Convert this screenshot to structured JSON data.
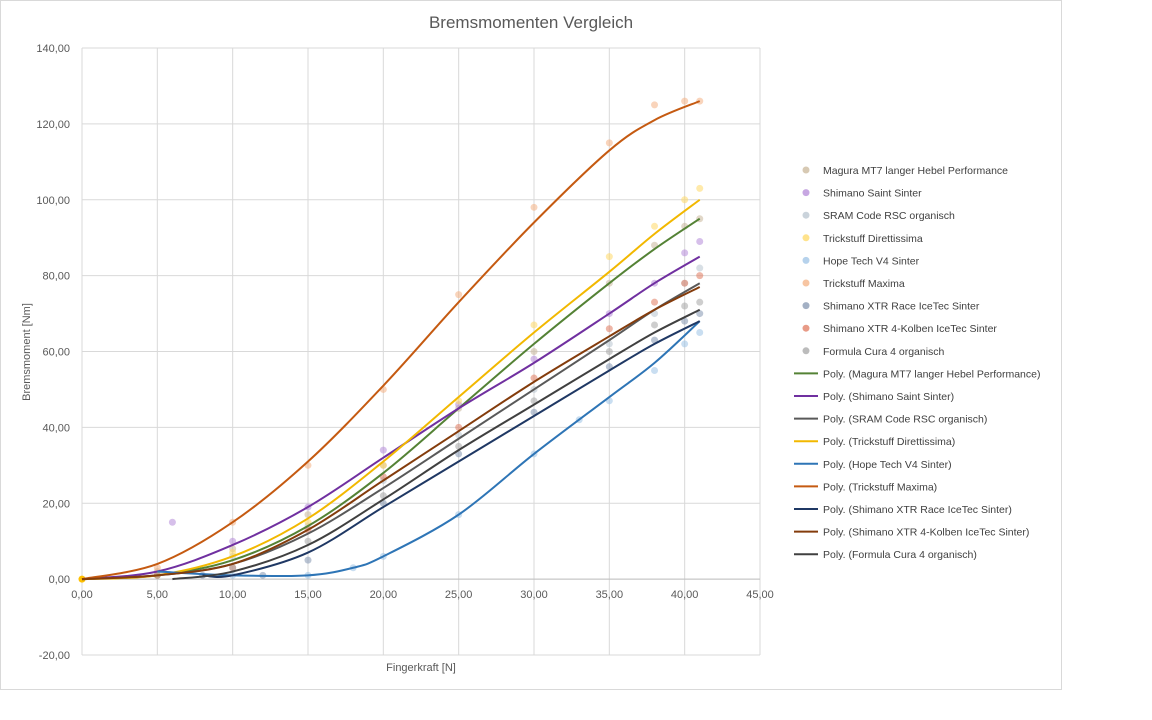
{
  "chart_data": {
    "type": "scatter",
    "title": "Bremsmomenten Vergleich",
    "xlabel": "Fingerkraft [N]",
    "ylabel": "Bremsmoment [Nm]",
    "xlim": [
      0,
      45
    ],
    "ylim": [
      -20,
      140
    ],
    "x_ticks": [
      "0,00",
      "5,00",
      "10,00",
      "15,00",
      "20,00",
      "25,00",
      "30,00",
      "35,00",
      "40,00",
      "45,00"
    ],
    "y_ticks": [
      "-20,00",
      "0,00",
      "20,00",
      "40,00",
      "60,00",
      "80,00",
      "100,00",
      "120,00",
      "140,00"
    ],
    "grid": true,
    "legend_position": "right",
    "series": [
      {
        "name": "Magura MT7 langer Hebel Performance",
        "color": "#c9b79a",
        "points": [
          [
            5,
            2
          ],
          [
            10,
            8
          ],
          [
            15,
            17
          ],
          [
            20,
            30
          ],
          [
            25,
            45
          ],
          [
            30,
            60
          ],
          [
            35,
            78
          ],
          [
            38,
            88
          ],
          [
            40,
            93
          ],
          [
            41,
            95
          ]
        ]
      },
      {
        "name": "Shimano Saint Sinter",
        "color": "#b48ad8",
        "points": [
          [
            6,
            15
          ],
          [
            10,
            10
          ],
          [
            15,
            19
          ],
          [
            20,
            34
          ],
          [
            25,
            46
          ],
          [
            30,
            58
          ],
          [
            35,
            70
          ],
          [
            38,
            78
          ],
          [
            40,
            86
          ],
          [
            41,
            89
          ]
        ]
      },
      {
        "name": "SRAM Code RSC organisch",
        "color": "#b8c4cf",
        "points": [
          [
            5,
            1
          ],
          [
            10,
            6
          ],
          [
            15,
            14
          ],
          [
            20,
            26
          ],
          [
            25,
            38
          ],
          [
            30,
            50
          ],
          [
            35,
            62
          ],
          [
            38,
            70
          ],
          [
            40,
            78
          ],
          [
            41,
            82
          ]
        ]
      },
      {
        "name": "Trickstuff Direttissima",
        "color": "#ffd966",
        "points": [
          [
            5,
            1
          ],
          [
            10,
            7
          ],
          [
            15,
            15
          ],
          [
            20,
            30
          ],
          [
            25,
            47
          ],
          [
            30,
            67
          ],
          [
            35,
            85
          ],
          [
            38,
            93
          ],
          [
            40,
            100
          ],
          [
            41,
            103
          ]
        ]
      },
      {
        "name": "Hope Tech V4 Sinter",
        "color": "#9dc3e6",
        "points": [
          [
            10,
            1
          ],
          [
            15,
            1
          ],
          [
            18,
            3
          ],
          [
            20,
            6
          ],
          [
            25,
            17
          ],
          [
            30,
            33
          ],
          [
            33,
            42
          ],
          [
            35,
            47
          ],
          [
            38,
            55
          ],
          [
            40,
            62
          ],
          [
            41,
            65
          ]
        ]
      },
      {
        "name": "Trickstuff Maxima",
        "color": "#f4b183",
        "points": [
          [
            5,
            3
          ],
          [
            10,
            15
          ],
          [
            15,
            30
          ],
          [
            20,
            50
          ],
          [
            25,
            75
          ],
          [
            30,
            98
          ],
          [
            35,
            115
          ],
          [
            38,
            125
          ],
          [
            40,
            126
          ],
          [
            41,
            126
          ]
        ]
      },
      {
        "name": "Shimano XTR Race IceTec Sinter",
        "color": "#8496b0",
        "points": [
          [
            8,
            1
          ],
          [
            12,
            1
          ],
          [
            15,
            5
          ],
          [
            20,
            20
          ],
          [
            25,
            33
          ],
          [
            30,
            44
          ],
          [
            35,
            56
          ],
          [
            38,
            63
          ],
          [
            40,
            68
          ],
          [
            41,
            70
          ]
        ]
      },
      {
        "name": "Shimano XTR 4-Kolben IceTec Sinter",
        "color": "#e07a5f",
        "points": [
          [
            5,
            1
          ],
          [
            10,
            3
          ],
          [
            15,
            13
          ],
          [
            20,
            27
          ],
          [
            25,
            40
          ],
          [
            30,
            53
          ],
          [
            35,
            66
          ],
          [
            38,
            73
          ],
          [
            40,
            78
          ],
          [
            41,
            80
          ]
        ]
      },
      {
        "name": "Formula Cura 4 organisch",
        "color": "#a5a5a5",
        "points": [
          [
            5,
            1
          ],
          [
            10,
            3
          ],
          [
            15,
            10
          ],
          [
            20,
            22
          ],
          [
            25,
            35
          ],
          [
            30,
            47
          ],
          [
            35,
            60
          ],
          [
            38,
            67
          ],
          [
            40,
            72
          ],
          [
            41,
            73
          ]
        ]
      }
    ],
    "trendlines": [
      {
        "name": "Poly. (Magura MT7 langer Hebel Performance)",
        "color": "#548235",
        "points": [
          [
            0,
            0
          ],
          [
            5,
            1
          ],
          [
            10,
            5
          ],
          [
            15,
            14
          ],
          [
            20,
            28
          ],
          [
            25,
            45
          ],
          [
            30,
            62
          ],
          [
            35,
            78
          ],
          [
            38,
            87
          ],
          [
            41,
            95
          ]
        ]
      },
      {
        "name": "Poly. (Shimano Saint Sinter)",
        "color": "#7030a0",
        "points": [
          [
            0,
            0
          ],
          [
            5,
            2
          ],
          [
            10,
            9
          ],
          [
            15,
            19
          ],
          [
            20,
            32
          ],
          [
            25,
            45
          ],
          [
            30,
            57
          ],
          [
            35,
            70
          ],
          [
            38,
            78
          ],
          [
            41,
            85
          ]
        ]
      },
      {
        "name": "Poly. (SRAM Code RSC organisch)",
        "color": "#595959",
        "points": [
          [
            0,
            0
          ],
          [
            5,
            1
          ],
          [
            10,
            4
          ],
          [
            15,
            12
          ],
          [
            20,
            24
          ],
          [
            25,
            37
          ],
          [
            30,
            50
          ],
          [
            35,
            63
          ],
          [
            38,
            71
          ],
          [
            41,
            78
          ]
        ]
      },
      {
        "name": "Poly. (Trickstuff Direttissima)",
        "color": "#f2b800",
        "points": [
          [
            0,
            0
          ],
          [
            5,
            1
          ],
          [
            10,
            6
          ],
          [
            15,
            16
          ],
          [
            20,
            31
          ],
          [
            25,
            48
          ],
          [
            30,
            65
          ],
          [
            35,
            81
          ],
          [
            38,
            91
          ],
          [
            41,
            100
          ]
        ]
      },
      {
        "name": "Poly. (Hope Tech V4 Sinter)",
        "color": "#2e75b6",
        "points": [
          [
            5,
            2
          ],
          [
            10,
            1
          ],
          [
            15,
            1
          ],
          [
            18,
            3
          ],
          [
            20,
            6
          ],
          [
            25,
            17
          ],
          [
            30,
            33
          ],
          [
            35,
            48
          ],
          [
            38,
            57
          ],
          [
            41,
            68
          ]
        ]
      },
      {
        "name": "Poly. (Trickstuff Maxima)",
        "color": "#c55a11",
        "points": [
          [
            0,
            0
          ],
          [
            5,
            4
          ],
          [
            10,
            15
          ],
          [
            15,
            31
          ],
          [
            20,
            51
          ],
          [
            25,
            73
          ],
          [
            30,
            94
          ],
          [
            35,
            113
          ],
          [
            38,
            121
          ],
          [
            41,
            126
          ]
        ]
      },
      {
        "name": "Poly. (Shimano XTR Race IceTec Sinter)",
        "color": "#1f3864",
        "points": [
          [
            8,
            1
          ],
          [
            10,
            1
          ],
          [
            15,
            7
          ],
          [
            20,
            19
          ],
          [
            25,
            31
          ],
          [
            30,
            43
          ],
          [
            35,
            55
          ],
          [
            38,
            62
          ],
          [
            41,
            68
          ]
        ]
      },
      {
        "name": "Poly. (Shimano XTR 4-Kolben IceTec Sinter)",
        "color": "#843c0c",
        "points": [
          [
            0,
            0
          ],
          [
            5,
            1
          ],
          [
            10,
            4
          ],
          [
            15,
            13
          ],
          [
            20,
            26
          ],
          [
            25,
            39
          ],
          [
            30,
            52
          ],
          [
            35,
            64
          ],
          [
            38,
            71
          ],
          [
            41,
            77
          ]
        ]
      },
      {
        "name": "Poly. (Formula Cura 4 organisch)",
        "color": "#404040",
        "points": [
          [
            6,
            0
          ],
          [
            10,
            2
          ],
          [
            15,
            9
          ],
          [
            20,
            21
          ],
          [
            25,
            34
          ],
          [
            30,
            46
          ],
          [
            35,
            58
          ],
          [
            38,
            65
          ],
          [
            41,
            71
          ]
        ]
      }
    ]
  }
}
